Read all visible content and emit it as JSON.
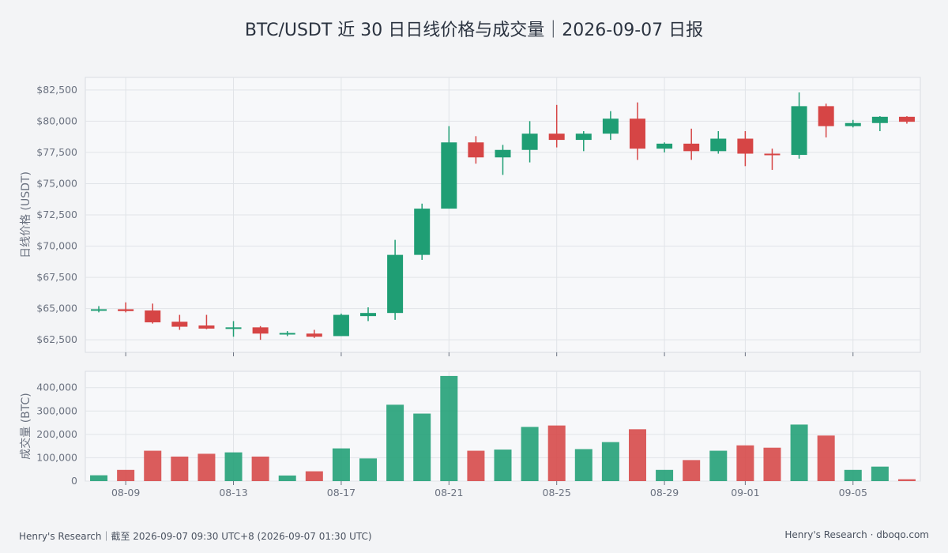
{
  "title": "BTC/USDT 近 30 日日线价格与成交量｜2026-09-07 日报",
  "footer": {
    "left": "Henry's Research｜截至 2026-09-07 09:30 UTC+8 (2026-09-07 01:30 UTC)",
    "right": "Henry's Research · dboqo.com"
  },
  "colors": {
    "up": "#1f9e74",
    "down": "#d64545",
    "grid": "#e1e4e8",
    "panel_bg": "#f7f8fa",
    "panel_border": "#d9dce1"
  },
  "chart_data": [
    {
      "type": "candlestick",
      "ylabel": "日线价格 (USDT)",
      "ylim": [
        61500,
        83500
      ],
      "yticks": [
        62500,
        65000,
        67500,
        70000,
        72500,
        75000,
        77500,
        80000,
        82500
      ],
      "ytick_labels": [
        "$62,500",
        "$65,000",
        "$67,500",
        "$70,000",
        "$72,500",
        "$75,000",
        "$77,500",
        "$80,000",
        "$82,500"
      ],
      "grid": true,
      "days": [
        {
          "o": 64850,
          "h": 65200,
          "l": 64700,
          "c": 64950
        },
        {
          "o": 64950,
          "h": 65500,
          "l": 64700,
          "c": 64800
        },
        {
          "o": 64850,
          "h": 65400,
          "l": 63800,
          "c": 63900
        },
        {
          "o": 63950,
          "h": 64500,
          "l": 63300,
          "c": 63550
        },
        {
          "o": 63650,
          "h": 64500,
          "l": 63350,
          "c": 63400
        },
        {
          "o": 63450,
          "h": 64000,
          "l": 62750,
          "c": 63500
        },
        {
          "o": 63500,
          "h": 63600,
          "l": 62500,
          "c": 63000
        },
        {
          "o": 62950,
          "h": 63200,
          "l": 62800,
          "c": 63050
        },
        {
          "o": 63000,
          "h": 63300,
          "l": 62650,
          "c": 62750
        },
        {
          "o": 62800,
          "h": 64600,
          "l": 62800,
          "c": 64500
        },
        {
          "o": 64400,
          "h": 65100,
          "l": 64000,
          "c": 64650
        },
        {
          "o": 64650,
          "h": 70500,
          "l": 64100,
          "c": 69300
        },
        {
          "o": 69300,
          "h": 73400,
          "l": 68900,
          "c": 73000
        },
        {
          "o": 73000,
          "h": 79600,
          "l": 73000,
          "c": 78300
        },
        {
          "o": 78300,
          "h": 78800,
          "l": 76600,
          "c": 77100
        },
        {
          "o": 77100,
          "h": 78100,
          "l": 75700,
          "c": 77700
        },
        {
          "o": 77700,
          "h": 80000,
          "l": 76700,
          "c": 79000
        },
        {
          "o": 79000,
          "h": 81300,
          "l": 77900,
          "c": 78500
        },
        {
          "o": 78500,
          "h": 79200,
          "l": 77600,
          "c": 79000
        },
        {
          "o": 79000,
          "h": 80800,
          "l": 78500,
          "c": 80200
        },
        {
          "o": 80200,
          "h": 81500,
          "l": 76900,
          "c": 77800
        },
        {
          "o": 77800,
          "h": 78300,
          "l": 77500,
          "c": 78200
        },
        {
          "o": 78200,
          "h": 79400,
          "l": 76900,
          "c": 77600
        },
        {
          "o": 77600,
          "h": 79200,
          "l": 77400,
          "c": 78600
        },
        {
          "o": 78600,
          "h": 79200,
          "l": 76400,
          "c": 77400
        },
        {
          "o": 77400,
          "h": 77800,
          "l": 76100,
          "c": 77300
        },
        {
          "o": 77300,
          "h": 82300,
          "l": 77000,
          "c": 81200
        },
        {
          "o": 81200,
          "h": 81400,
          "l": 78700,
          "c": 79600
        },
        {
          "o": 79600,
          "h": 80100,
          "l": 79500,
          "c": 79850
        },
        {
          "o": 79850,
          "h": 80400,
          "l": 79200,
          "c": 80350
        },
        {
          "o": 80350,
          "h": 80400,
          "l": 79800,
          "c": 79950
        }
      ]
    },
    {
      "type": "bar",
      "ylabel": "成交量 (BTC)",
      "ylim": [
        0,
        470000
      ],
      "yticks": [
        0,
        100000,
        200000,
        300000,
        400000
      ],
      "ytick_labels": [
        "0",
        "100,000",
        "200,000",
        "300,000",
        "400,000"
      ],
      "grid": true,
      "volumes": [
        25000,
        48000,
        130000,
        105000,
        117000,
        123000,
        105000,
        24000,
        42000,
        140000,
        97000,
        327000,
        289000,
        450000,
        130000,
        135000,
        232000,
        238000,
        137000,
        167000,
        222000,
        48000,
        90000,
        130000,
        153000,
        143000,
        242000,
        195000,
        48000,
        62000,
        8000
      ]
    }
  ],
  "x_axis": {
    "tick_labels": [
      "08-09",
      "08-13",
      "08-17",
      "08-21",
      "08-25",
      "08-29",
      "09-01",
      "09-05"
    ],
    "tick_day_index": [
      1,
      5,
      9,
      13,
      17,
      21,
      24,
      28
    ]
  }
}
